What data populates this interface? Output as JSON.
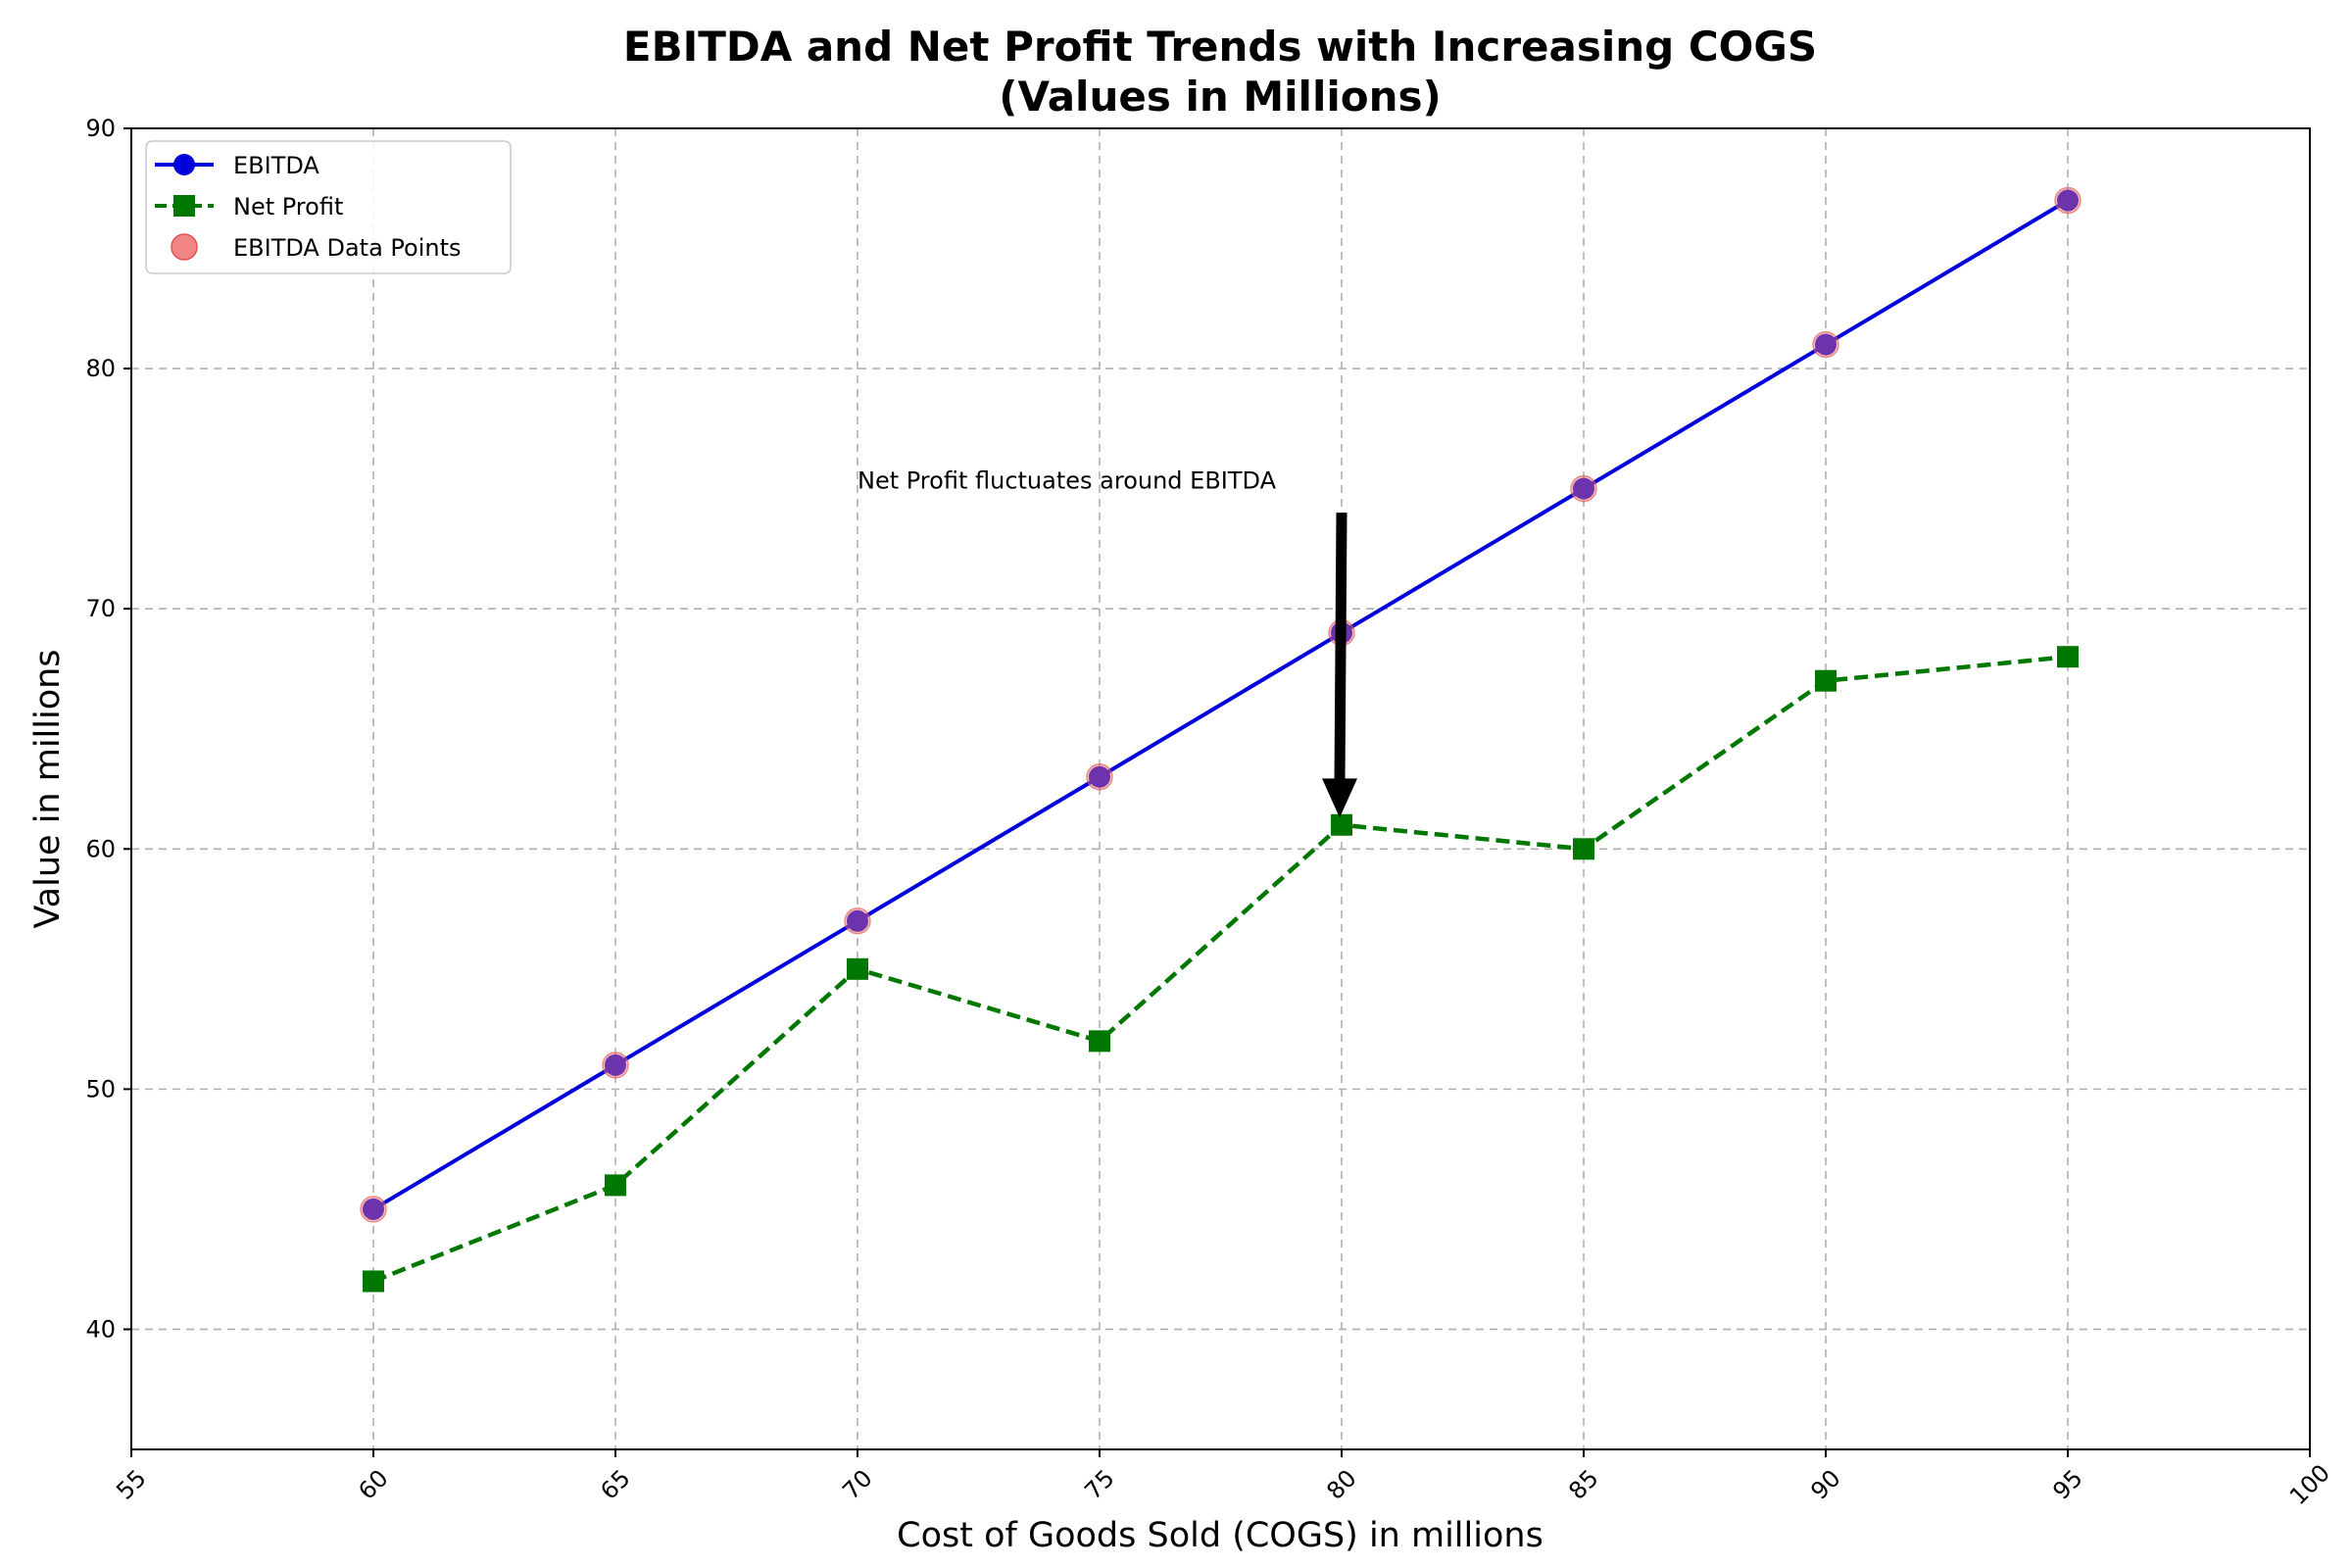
{
  "chart_data": {
    "type": "line",
    "title_line1": "EBITDA and Net Profit Trends with Increasing COGS",
    "title_line2": "(Values in Millions)",
    "xlabel": "Cost of Goods Sold (COGS) in millions",
    "ylabel": "Value in millions",
    "xlim": [
      55,
      100
    ],
    "ylim": [
      35,
      90
    ],
    "xticks": [
      55,
      60,
      65,
      70,
      75,
      80,
      85,
      90,
      95,
      100
    ],
    "yticks": [
      40,
      50,
      60,
      70,
      80,
      90
    ],
    "grid": true,
    "legend_position": "top-left",
    "x": [
      60,
      65,
      70,
      75,
      80,
      85,
      90,
      95
    ],
    "series": [
      {
        "name": "EBITDA",
        "style": "solid-line-circle",
        "color": "#0000dd",
        "values": [
          45,
          51,
          57,
          63,
          69,
          75,
          81,
          87
        ]
      },
      {
        "name": "Net Profit",
        "style": "dashed-line-square",
        "color": "#007700",
        "values": [
          42,
          46,
          55,
          52,
          61,
          60,
          67,
          68
        ]
      },
      {
        "name": "EBITDA Data Points",
        "style": "scatter",
        "color": "#f07070",
        "values": [
          45,
          51,
          57,
          63,
          69,
          75,
          81,
          87
        ]
      }
    ],
    "annotation": {
      "text": "Net Profit fluctuates around EBITDA",
      "text_anchor": [
        70,
        75
      ],
      "arrow_from": [
        80,
        74
      ],
      "arrow_to": [
        80,
        61.3
      ]
    }
  }
}
